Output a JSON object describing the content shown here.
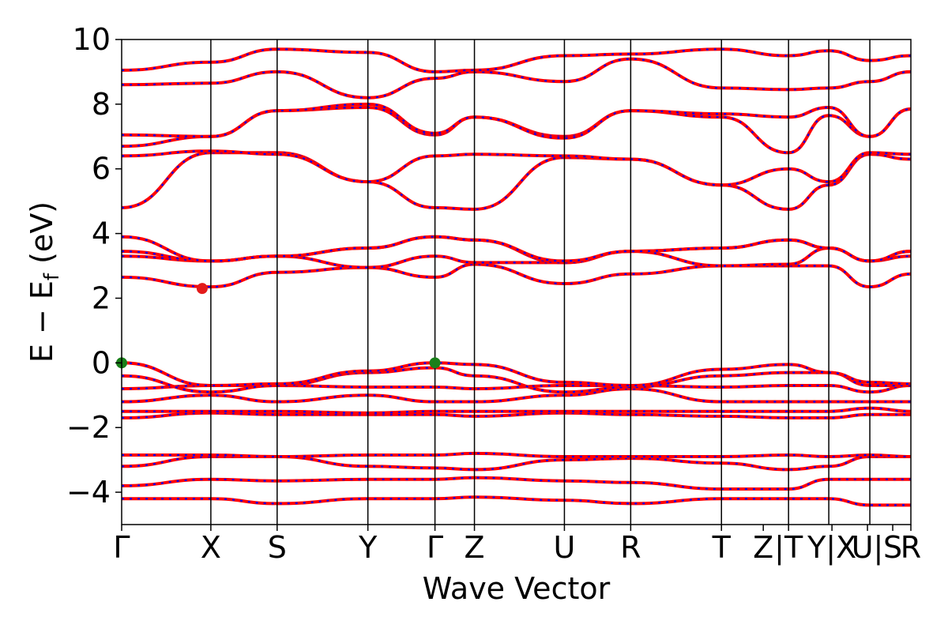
{
  "chart_data": {
    "type": "line",
    "title": "",
    "xlabel": "Wave Vector",
    "ylabel_main": "E − E",
    "ylabel_sub": "f",
    "ylabel_tail": " (eV)",
    "ylim": [
      -5,
      10
    ],
    "y_ticks": [
      {
        "value": -4,
        "label": "−4"
      },
      {
        "value": -2,
        "label": "−2"
      },
      {
        "value": 0,
        "label": "0"
      },
      {
        "value": 2,
        "label": "2"
      },
      {
        "value": 4,
        "label": "4"
      },
      {
        "value": 6,
        "label": "6"
      },
      {
        "value": 8,
        "label": "8"
      },
      {
        "value": 10,
        "label": "10"
      }
    ],
    "kpoints": [
      {
        "label": "Γ",
        "x": 0.0
      },
      {
        "label": "X",
        "x": 0.113
      },
      {
        "label": "S",
        "x": 0.197
      },
      {
        "label": "Y",
        "x": 0.312
      },
      {
        "label": "Γ",
        "x": 0.397
      },
      {
        "label": "Z",
        "x": 0.447
      },
      {
        "label": "U",
        "x": 0.561
      },
      {
        "label": "R",
        "x": 0.645
      },
      {
        "label": "T",
        "x": 0.76
      },
      {
        "label": "Z",
        "x": 0.813
      },
      {
        "label": "|T",
        "x": 0.845
      },
      {
        "label": "Y|X",
        "x": 0.9
      },
      {
        "label": "U|",
        "x": 0.945
      },
      {
        "label": "S",
        "x": 0.977
      },
      {
        "label": "R",
        "x": 1.0
      }
    ],
    "vertical_lines_x": [
      0.113,
      0.197,
      0.312,
      0.397,
      0.447,
      0.561,
      0.645,
      0.76,
      0.845,
      0.896,
      0.948
    ],
    "segments": [
      0.0,
      0.113,
      0.197,
      0.312,
      0.397,
      0.447,
      0.561,
      0.645,
      0.76,
      0.845,
      0.896,
      0.948,
      1.0
    ],
    "bands": [
      [
        -4.2,
        -4.2,
        -4.35,
        -4.2,
        -4.2,
        -4.15,
        -4.25,
        -4.35,
        -4.2,
        -4.2,
        -4.2,
        -4.4,
        -4.4
      ],
      [
        -3.8,
        -3.6,
        -3.65,
        -3.6,
        -3.6,
        -3.55,
        -3.65,
        -3.7,
        -3.9,
        -3.9,
        -3.6,
        -3.6,
        -3.6
      ],
      [
        -3.2,
        -2.9,
        -2.9,
        -3.2,
        -3.25,
        -3.3,
        -3.0,
        -2.95,
        -3.1,
        -3.3,
        -3.2,
        -2.9,
        -2.9
      ],
      [
        -2.85,
        -2.85,
        -2.9,
        -2.85,
        -2.85,
        -2.8,
        -2.9,
        -2.9,
        -2.9,
        -2.85,
        -2.9,
        -2.85,
        -2.9
      ],
      [
        -1.7,
        -1.55,
        -1.6,
        -1.6,
        -1.6,
        -1.65,
        -1.55,
        -1.6,
        -1.65,
        -1.7,
        -1.7,
        -1.6,
        -1.6
      ],
      [
        -1.5,
        -1.5,
        -1.5,
        -1.55,
        -1.5,
        -1.5,
        -1.5,
        -1.5,
        -1.5,
        -1.5,
        -1.5,
        -1.4,
        -1.5
      ],
      [
        -1.2,
        -1.0,
        -1.2,
        -1.0,
        -1.2,
        -1.2,
        -1.0,
        -0.8,
        -1.2,
        -1.2,
        -1.2,
        -1.2,
        -1.2
      ],
      [
        -0.8,
        -0.7,
        -0.7,
        -0.75,
        -0.75,
        -0.8,
        -0.7,
        -0.7,
        -0.75,
        -0.7,
        -0.7,
        -0.9,
        -0.7
      ],
      [
        -0.4,
        -0.9,
        -0.7,
        -0.3,
        -0.15,
        -0.4,
        -0.9,
        -0.75,
        -0.4,
        -0.3,
        -0.3,
        -0.7,
        -0.7
      ],
      [
        0.0,
        -0.7,
        -0.65,
        -0.25,
        0.0,
        -0.05,
        -0.6,
        -0.7,
        -0.2,
        -0.05,
        -0.3,
        -0.6,
        -0.65
      ],
      [
        2.65,
        2.35,
        2.8,
        2.95,
        2.65,
        3.05,
        2.45,
        2.75,
        3.0,
        3.0,
        3.0,
        2.35,
        2.75
      ],
      [
        3.3,
        3.15,
        3.3,
        2.95,
        3.3,
        3.1,
        3.1,
        3.45,
        3.0,
        3.05,
        3.55,
        3.15,
        3.3
      ],
      [
        3.45,
        3.15,
        3.3,
        3.55,
        3.9,
        3.8,
        3.1,
        3.45,
        3.55,
        3.8,
        3.55,
        3.15,
        3.45
      ],
      [
        3.9,
        3.15,
        3.3,
        3.55,
        3.9,
        3.8,
        3.15,
        3.45,
        3.55,
        3.8,
        3.55,
        3.15,
        3.45
      ],
      [
        4.8,
        6.5,
        6.5,
        5.6,
        4.8,
        4.75,
        6.35,
        6.3,
        5.5,
        4.75,
        5.5,
        6.45,
        6.3
      ],
      [
        6.4,
        6.55,
        6.45,
        5.6,
        6.4,
        6.45,
        6.4,
        6.3,
        5.5,
        6.0,
        5.6,
        6.5,
        6.45
      ],
      [
        6.7,
        7.0,
        7.8,
        7.9,
        7.05,
        7.6,
        7.0,
        7.8,
        7.6,
        6.5,
        7.65,
        7.0,
        7.85
      ],
      [
        7.05,
        7.0,
        7.8,
        8.0,
        7.1,
        7.6,
        6.95,
        7.8,
        7.7,
        7.6,
        7.9,
        7.0,
        7.85
      ],
      [
        8.6,
        8.65,
        9.0,
        8.2,
        8.8,
        9.0,
        8.7,
        9.4,
        8.5,
        8.45,
        8.5,
        8.7,
        9.0
      ],
      [
        9.05,
        9.3,
        9.7,
        9.6,
        9.0,
        9.05,
        9.5,
        9.55,
        9.7,
        9.5,
        9.65,
        9.35,
        9.5
      ]
    ],
    "markers": [
      {
        "x": 0.0,
        "y": 0.0,
        "color": "#1a7f1a"
      },
      {
        "x": 0.397,
        "y": 0.0,
        "color": "#1a7f1a"
      },
      {
        "x": 0.102,
        "y": 2.3,
        "color": "#e31b1b"
      }
    ],
    "colors": {
      "red": "#ff0000",
      "blue": "#0000ff",
      "green": "#1a7f1a"
    }
  }
}
